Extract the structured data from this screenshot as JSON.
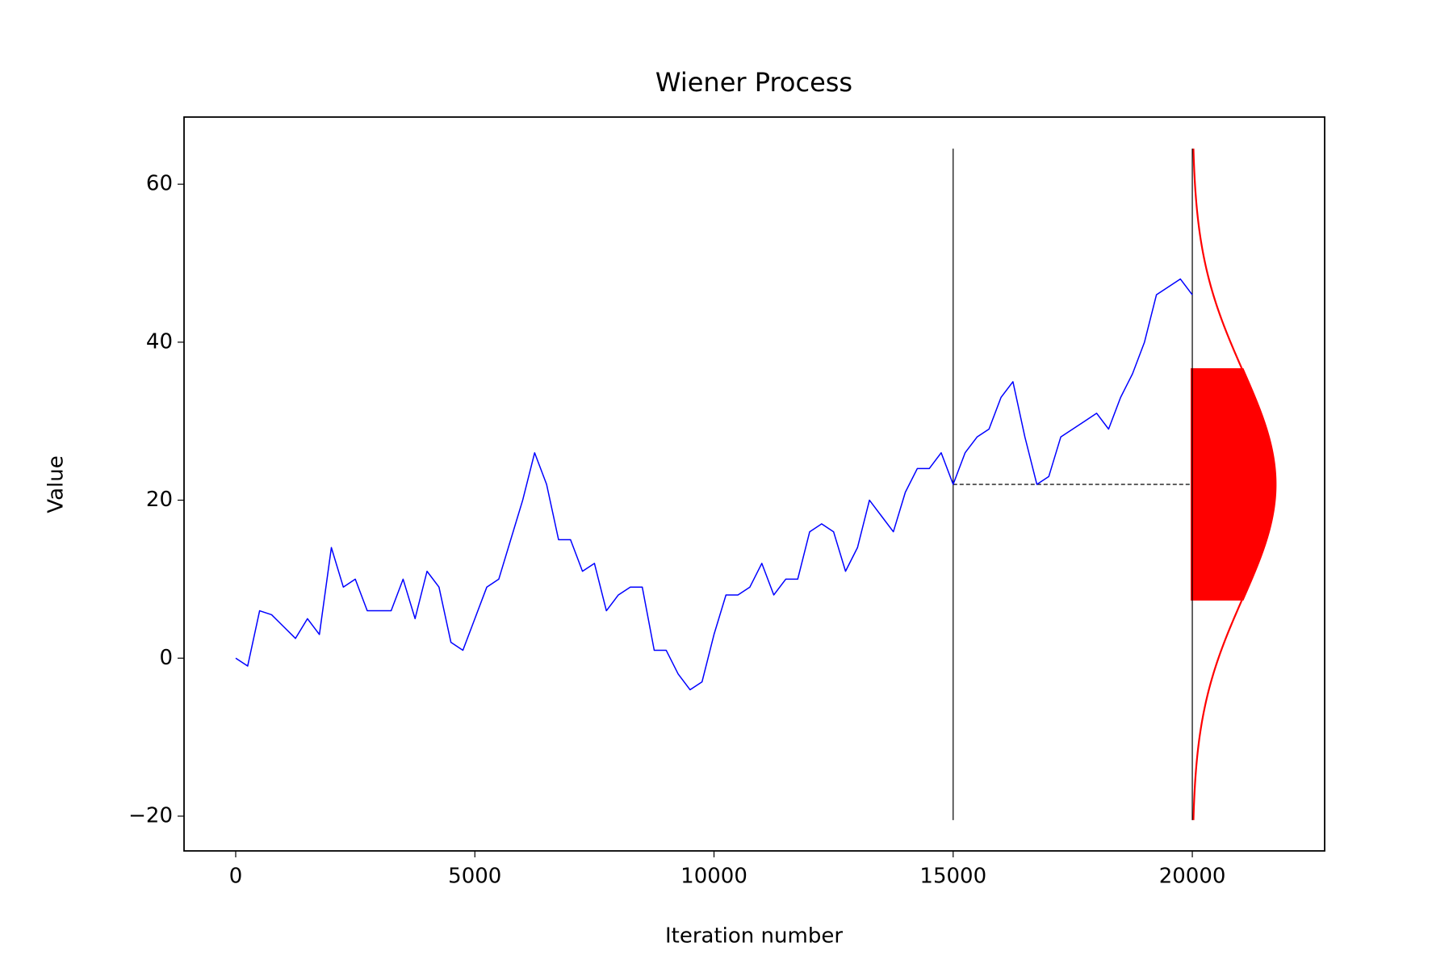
{
  "chart_data": {
    "type": "line",
    "title": "Wiener Process",
    "x_label": "Iteration number",
    "y_label": "Value",
    "x": [
      0,
      250,
      500,
      750,
      1000,
      1250,
      1500,
      1750,
      2000,
      2250,
      2500,
      2750,
      3000,
      3250,
      3500,
      3750,
      4000,
      4250,
      4500,
      4750,
      5000,
      5250,
      5500,
      5750,
      6000,
      6250,
      6500,
      6750,
      7000,
      7250,
      7500,
      7750,
      8000,
      8250,
      8500,
      8750,
      9000,
      9250,
      9500,
      9750,
      10000,
      10250,
      10500,
      10750,
      11000,
      11250,
      11500,
      11750,
      12000,
      12250,
      12500,
      12750,
      13000,
      13250,
      13500,
      13750,
      14000,
      14250,
      14500,
      14750,
      15000,
      15250,
      15500,
      15750,
      16000,
      16250,
      16500,
      16750,
      17000,
      17250,
      17500,
      17750,
      18000,
      18250,
      18500,
      18750,
      19000,
      19250,
      19500,
      19750,
      20000
    ],
    "series": [
      {
        "color": "#0000ff",
        "values": [
          0,
          -1,
          6,
          5.5,
          4,
          2.5,
          5,
          3,
          14,
          9,
          10,
          6,
          6,
          6,
          10,
          5,
          11,
          9,
          2,
          1,
          5,
          9,
          10,
          15,
          20,
          26,
          22,
          15,
          15,
          11,
          12,
          6,
          8,
          9,
          9,
          1,
          1,
          -2,
          -4,
          -3,
          3,
          8,
          8,
          9,
          12,
          8,
          10,
          10,
          16,
          17,
          16,
          11,
          14,
          20,
          18,
          16,
          21,
          24,
          24,
          26,
          22,
          26,
          28,
          29,
          33,
          35,
          28,
          22,
          23,
          28,
          29,
          30,
          31,
          29,
          33,
          36,
          40,
          46,
          47,
          48,
          46
        ]
      }
    ],
    "vlines": [
      {
        "x": 15000,
        "ymin": -20.5,
        "ymax": 64.5
      },
      {
        "x": 20000,
        "ymin": -20.5,
        "ymax": 64.5
      }
    ],
    "hline": {
      "y": 22,
      "xmin": 15000,
      "xmax": 20000
    },
    "distribution": {
      "color": "#ff0000",
      "x_start": 20000,
      "peak_width": 1727,
      "mean": 22,
      "std": 14.5,
      "ymin": -20.5,
      "ymax": 64.5,
      "fill_band": [
        7.5,
        36.5
      ]
    },
    "xlim": [
      -1080,
      22767
    ],
    "ylim": [
      -24.4,
      68.5
    ],
    "xticks": [
      0,
      5000,
      10000,
      15000,
      20000
    ],
    "yticks": [
      {
        "value": -20,
        "label": "−20"
      },
      0,
      20,
      40,
      60
    ]
  }
}
